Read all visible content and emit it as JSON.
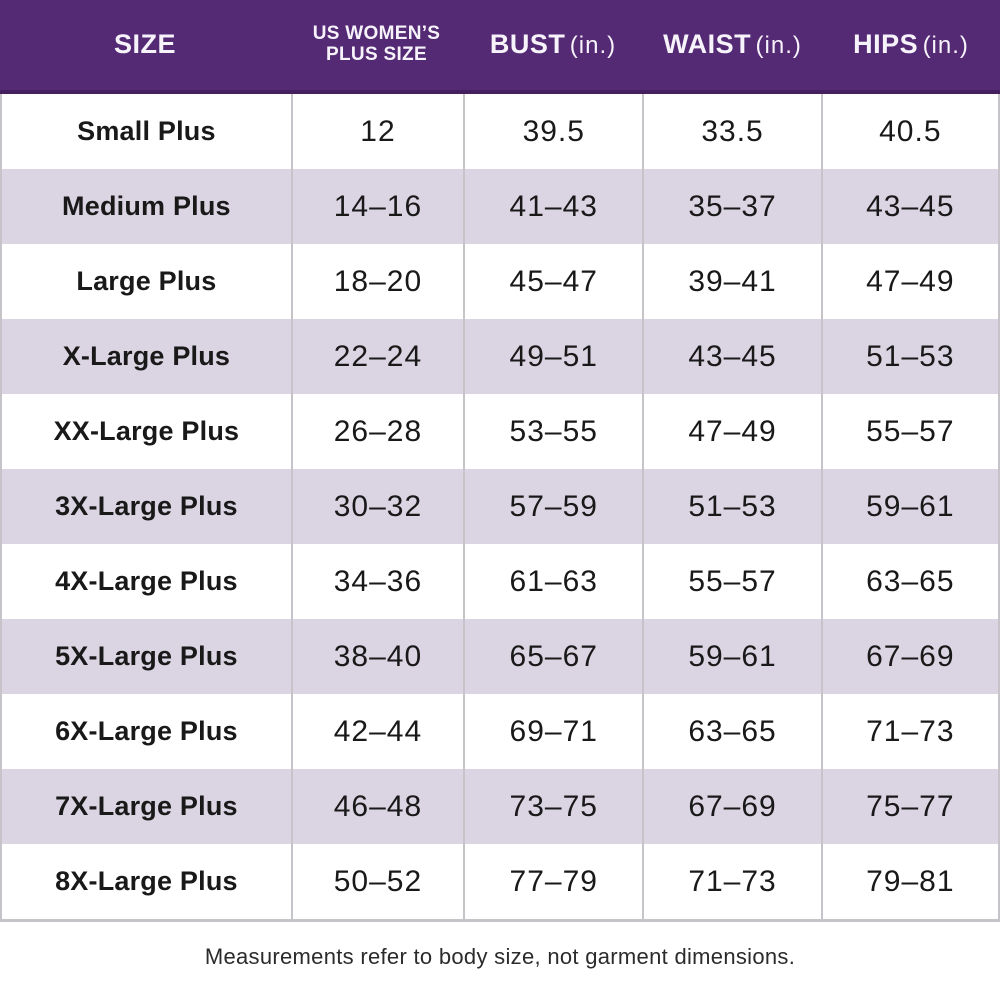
{
  "colors": {
    "header_purple": "#542a75",
    "header_purple_dark_edge": "#44205f",
    "row_lavender": "#dbd4e2",
    "row_white": "#ffffff",
    "grid_line_gray": "#c6c3c9",
    "text_black": "#191919",
    "header_text_white": "#f7f3fa"
  },
  "header": {
    "columns": [
      {
        "title": "SIZE"
      },
      {
        "title_line1": "US WOMEN’S",
        "title_line2": "PLUS SIZE"
      },
      {
        "title": "BUST",
        "unit": "(in.)"
      },
      {
        "title": "WAIST",
        "unit": "(in.)"
      },
      {
        "title": "HIPS",
        "unit": "(in.)"
      }
    ]
  },
  "footer": {
    "note": "Measurements refer to body size, not garment dimensions."
  },
  "chart_data": {
    "type": "table",
    "title": "Plus size chart (US Women's)",
    "columns": [
      "SIZE",
      "US WOMEN'S PLUS SIZE",
      "BUST (in.)",
      "WAIST (in.)",
      "HIPS (in.)"
    ],
    "rows": [
      {
        "size": "Small Plus",
        "us_plus_size": "12",
        "bust": "39.5",
        "waist": "33.5",
        "hips": "40.5"
      },
      {
        "size": "Medium Plus",
        "us_plus_size": "14–16",
        "bust": "41–43",
        "waist": "35–37",
        "hips": "43–45"
      },
      {
        "size": "Large Plus",
        "us_plus_size": "18–20",
        "bust": "45–47",
        "waist": "39–41",
        "hips": "47–49"
      },
      {
        "size": "X-Large Plus",
        "us_plus_size": "22–24",
        "bust": "49–51",
        "waist": "43–45",
        "hips": "51–53"
      },
      {
        "size": "XX-Large Plus",
        "us_plus_size": "26–28",
        "bust": "53–55",
        "waist": "47–49",
        "hips": "55–57"
      },
      {
        "size": "3X-Large Plus",
        "us_plus_size": "30–32",
        "bust": "57–59",
        "waist": "51–53",
        "hips": "59–61"
      },
      {
        "size": "4X-Large Plus",
        "us_plus_size": "34–36",
        "bust": "61–63",
        "waist": "55–57",
        "hips": "63–65"
      },
      {
        "size": "5X-Large Plus",
        "us_plus_size": "38–40",
        "bust": "65–67",
        "waist": "59–61",
        "hips": "67–69"
      },
      {
        "size": "6X-Large Plus",
        "us_plus_size": "42–44",
        "bust": "69–71",
        "waist": "63–65",
        "hips": "71–73"
      },
      {
        "size": "7X-Large Plus",
        "us_plus_size": "46–48",
        "bust": "73–75",
        "waist": "67–69",
        "hips": "75–77"
      },
      {
        "size": "8X-Large Plus",
        "us_plus_size": "50–52",
        "bust": "77–79",
        "waist": "71–73",
        "hips": "79–81"
      }
    ]
  }
}
